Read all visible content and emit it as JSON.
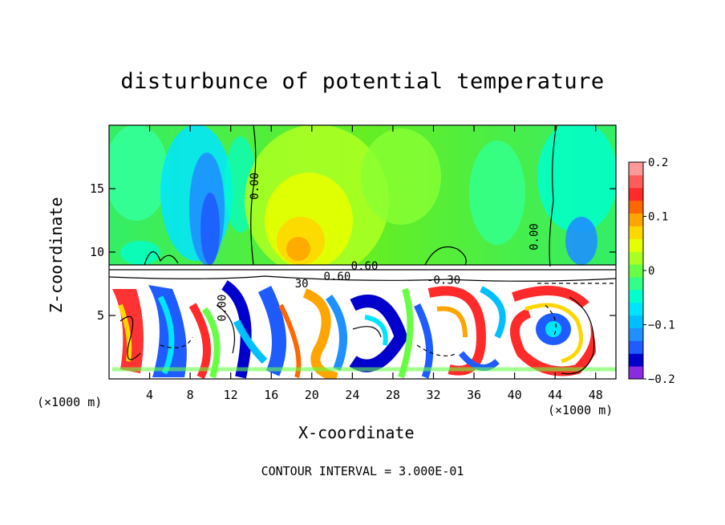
{
  "chart_data": {
    "type": "heatmap",
    "title": "disturbunce of potential temperature",
    "xlabel": "X-coordinate",
    "ylabel": "Z-coordinate",
    "x_unit": "(×1000 m)",
    "x_unit_right": "(×1000 m)",
    "xlim": [
      0,
      50
    ],
    "ylim": [
      0,
      20
    ],
    "x_ticks": [
      4,
      8,
      12,
      16,
      20,
      24,
      28,
      32,
      36,
      40,
      44,
      48
    ],
    "y_ticks": [
      5,
      10,
      15
    ],
    "colorbar": {
      "ticks": [
        0.2,
        0.1,
        0,
        -0.1,
        -0.2
      ],
      "tick_labels": [
        "0.2",
        "0.1",
        "0",
        "−0.1",
        "−0.2"
      ],
      "range": [
        -0.2,
        0.2
      ],
      "colors": [
        "#8a2be2",
        "#0000cd",
        "#1e5cff",
        "#1e90ff",
        "#00bfff",
        "#00e5ff",
        "#00ffcc",
        "#33ff88",
        "#66ff44",
        "#aaff22",
        "#e6ff00",
        "#ffd700",
        "#ffa500",
        "#ff6600",
        "#ff2a2a",
        "#ff5c5c",
        "#ff9999"
      ]
    },
    "contour_labels": [
      {
        "text": "0.00",
        "x": 14.7,
        "z": 15.2,
        "rotate": -90
      },
      {
        "text": "0.00",
        "x": 42.3,
        "z": 11.2,
        "rotate": -90
      },
      {
        "text": "0.00",
        "x": 11.5,
        "z": 5.6,
        "rotate": -90
      },
      {
        "text": "0.60",
        "x": 25.2,
        "z": 8.6,
        "rotate": 0
      },
      {
        "text": "0.60",
        "x": 22.5,
        "z": 7.8,
        "rotate": 0
      },
      {
        "text": "-0.30",
        "x": 33.0,
        "z": 7.5,
        "rotate": 0
      },
      {
        "text": "30",
        "x": 19.0,
        "z": 7.2,
        "rotate": 0
      }
    ],
    "contour_interval_text": "CONTOUR INTERVAL = 3.000E-01"
  }
}
